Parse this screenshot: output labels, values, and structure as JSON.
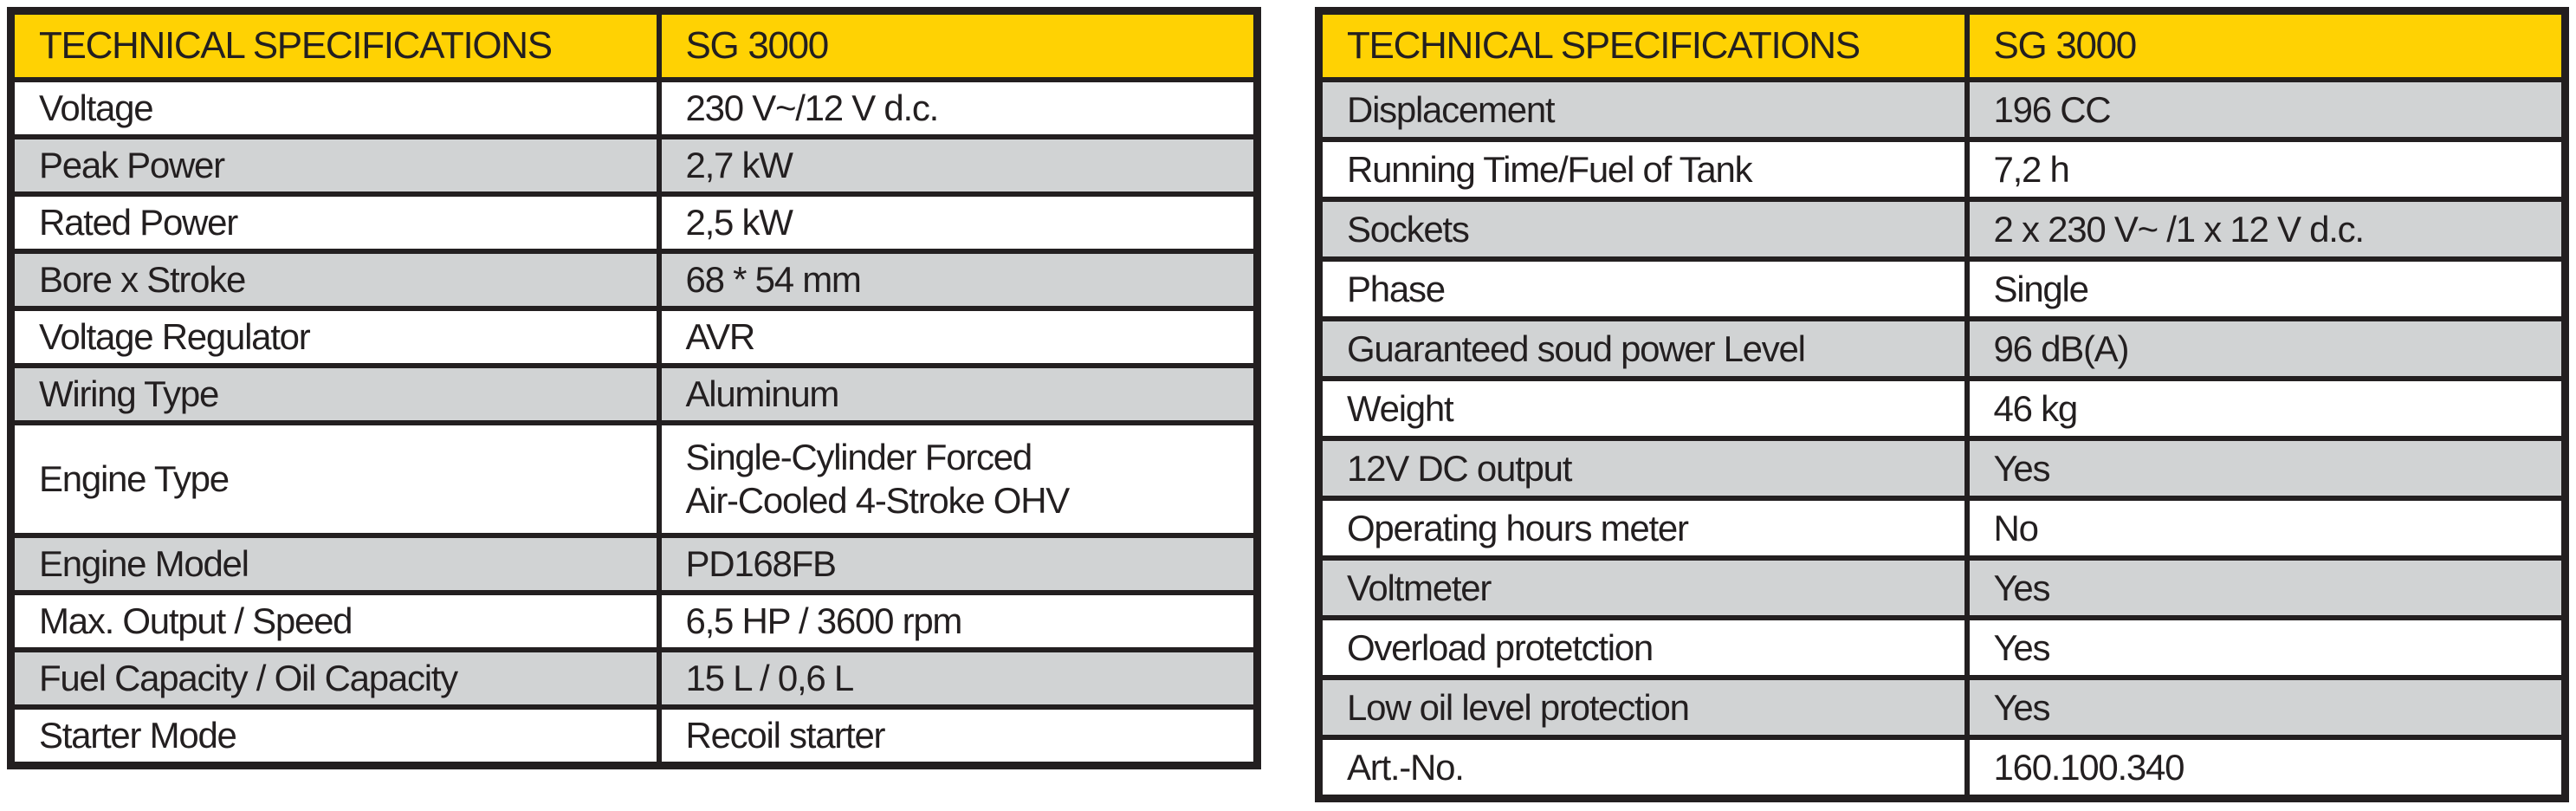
{
  "colors": {
    "header_bg": "#FFD203",
    "row_alt_bg": "#D1D3D4",
    "border": "#231F20",
    "text": "#231F20"
  },
  "left_table": {
    "header": {
      "title": "TECHNICAL SPECIFICATIONS",
      "model": "SG 3000"
    },
    "rows": [
      {
        "label": "Voltage",
        "value": "230 V~/12 V d.c."
      },
      {
        "label": "Peak Power",
        "value": "2,7 kW"
      },
      {
        "label": "Rated Power",
        "value": "2,5 kW"
      },
      {
        "label": "Bore x Stroke",
        "value": "68 * 54 mm"
      },
      {
        "label": "Voltage Regulator",
        "value": "AVR"
      },
      {
        "label": "Wiring Type",
        "value": "Aluminum"
      },
      {
        "label": "Engine Type",
        "value": "Single-Cylinder Forced\nAir-Cooled 4-Stroke OHV"
      },
      {
        "label": "Engine Model",
        "value": "PD168FB"
      },
      {
        "label": "Max. Output / Speed",
        "value": "6,5 HP / 3600 rpm"
      },
      {
        "label": "Fuel Capacity / Oil Capacity",
        "value": "15 L / 0,6 L"
      },
      {
        "label": "Starter Mode",
        "value": "Recoil starter"
      }
    ]
  },
  "right_table": {
    "header": {
      "title": "TECHNICAL SPECIFICATIONS",
      "model": "SG 3000"
    },
    "rows": [
      {
        "label": "Displacement",
        "value": "196 CC"
      },
      {
        "label": "Running Time/Fuel of Tank",
        "value": "7,2 h"
      },
      {
        "label": "Sockets",
        "value": "2 x 230 V~ /1 x 12 V d.c."
      },
      {
        "label": "Phase",
        "value": "Single"
      },
      {
        "label": "Guaranteed soud power Level",
        "value": "96 dB(A)"
      },
      {
        "label": "Weight",
        "value": "46 kg"
      },
      {
        "label": "12V DC output",
        "value": "Yes"
      },
      {
        "label": "Operating hours meter",
        "value": "No"
      },
      {
        "label": "Voltmeter",
        "value": "Yes"
      },
      {
        "label": "Overload protetction",
        "value": "Yes"
      },
      {
        "label": "Low oil level protection",
        "value": "Yes"
      },
      {
        "label": "Art.-No.",
        "value": "160.100.340"
      }
    ]
  }
}
